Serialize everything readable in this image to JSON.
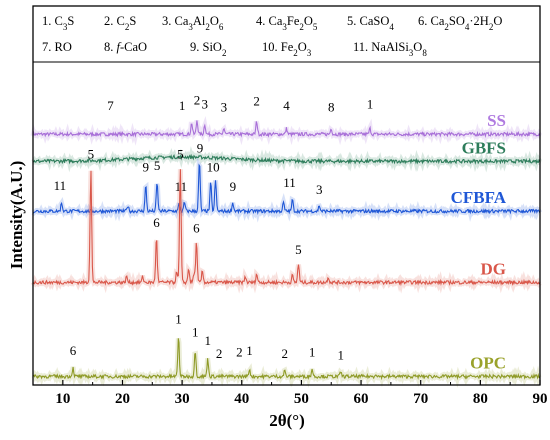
{
  "chart_data": {
    "type": "line",
    "xlabel": "2θ(°)",
    "ylabel": "Intensity(A.U.)",
    "xlim": [
      5,
      90
    ],
    "xticks": [
      10,
      20,
      30,
      40,
      50,
      60,
      70,
      80,
      90
    ],
    "grid": false,
    "legend": {
      "placement": "top",
      "rows": [
        [
          {
            "num": "1.",
            "parts": [
              [
                "C",
                ""
              ],
              [
                "3",
                "sub"
              ],
              [
                "S",
                ""
              ]
            ]
          },
          {
            "num": "2.",
            "parts": [
              [
                "C",
                ""
              ],
              [
                "2",
                "sub"
              ],
              [
                "S",
                ""
              ]
            ]
          },
          {
            "num": "3.",
            "parts": [
              [
                "Ca",
                ""
              ],
              [
                "3",
                "sub"
              ],
              [
                "Al",
                ""
              ],
              [
                "2",
                "sub"
              ],
              [
                "O",
                ""
              ],
              [
                "6",
                "sub"
              ]
            ]
          },
          {
            "num": "4.",
            "parts": [
              [
                "Ca",
                ""
              ],
              [
                "3",
                "sub"
              ],
              [
                "Fe",
                ""
              ],
              [
                "2",
                "sub"
              ],
              [
                "O",
                ""
              ],
              [
                "5",
                "sub"
              ]
            ]
          },
          {
            "num": "5.",
            "parts": [
              [
                "CaSO",
                ""
              ],
              [
                "4",
                "sub"
              ]
            ]
          },
          {
            "num": "6.",
            "parts": [
              [
                "Ca",
                ""
              ],
              [
                "2",
                "sub"
              ],
              [
                "SO",
                ""
              ],
              [
                "4",
                "sub"
              ],
              [
                "·2H",
                ""
              ],
              [
                "2",
                "sub"
              ],
              [
                "O",
                ""
              ]
            ]
          }
        ],
        [
          {
            "num": "7.",
            "parts": [
              [
                "RO",
                ""
              ]
            ]
          },
          {
            "num": "8.",
            "parts": [
              [
                "f",
                "italic"
              ],
              [
                "-CaO",
                ""
              ]
            ]
          },
          {
            "num": "9.",
            "parts": [
              [
                "SiO",
                ""
              ],
              [
                "2",
                "sub"
              ]
            ]
          },
          {
            "num": "10.",
            "parts": [
              [
                "Fe",
                ""
              ],
              [
                "2",
                "sub"
              ],
              [
                "O",
                ""
              ],
              [
                "3",
                "sub"
              ]
            ]
          },
          {
            "num": "11.",
            "parts": [
              [
                "NaAlSi",
                ""
              ],
              [
                "3",
                "sub"
              ],
              [
                "O",
                ""
              ],
              [
                "8",
                "sub"
              ]
            ]
          }
        ]
      ]
    },
    "series": [
      {
        "name": "SS",
        "color": "#a86fd8",
        "labelColor": "#b07be0",
        "baseline": 0.88,
        "peaks": [
          [
            31.6,
            0.04
          ],
          [
            32.5,
            0.05
          ],
          [
            33.8,
            0.035
          ],
          [
            37.0,
            0.02
          ],
          [
            42.5,
            0.045
          ],
          [
            47.5,
            0.02
          ],
          [
            55.0,
            0.02
          ],
          [
            61.5,
            0.02
          ]
        ],
        "labels": [
          {
            "text": "7",
            "x": 18.0,
            "dy": 0.085
          },
          {
            "text": "1",
            "x": 30.0,
            "dy": 0.085
          },
          {
            "text": "2",
            "x": 32.5,
            "dy": 0.105
          },
          {
            "text": "3",
            "x": 33.8,
            "dy": 0.09
          },
          {
            "text": "3",
            "x": 37.0,
            "dy": 0.08
          },
          {
            "text": "2",
            "x": 42.5,
            "dy": 0.1
          },
          {
            "text": "4",
            "x": 47.5,
            "dy": 0.085
          },
          {
            "text": "8",
            "x": 55.0,
            "dy": 0.08
          },
          {
            "text": "1",
            "x": 61.5,
            "dy": 0.09
          }
        ]
      },
      {
        "name": "GBFS",
        "color": "#2e7d5b",
        "labelColor": "#2e7d5b",
        "baseline": 0.785,
        "hump": [
          30.0,
          8.0,
          0.015
        ],
        "peaks": [],
        "labels": []
      },
      {
        "name": "CFBFA",
        "color": "#1f57d6",
        "labelColor": "#1f57d6",
        "baseline": 0.61,
        "peaks": [
          [
            9.8,
            0.03
          ],
          [
            20.9,
            0.02
          ],
          [
            23.9,
            0.09
          ],
          [
            25.8,
            0.1
          ],
          [
            29.5,
            0.025
          ],
          [
            30.4,
            0.03
          ],
          [
            32.9,
            0.175
          ],
          [
            34.8,
            0.1
          ],
          [
            35.6,
            0.11
          ],
          [
            38.5,
            0.03
          ],
          [
            47.0,
            0.03
          ],
          [
            48.5,
            0.04
          ],
          [
            53.0,
            0.02
          ]
        ],
        "labels": [
          {
            "text": "11",
            "x": 9.5,
            "dy": 0.075
          },
          {
            "text": "9",
            "x": 23.9,
            "dy": 0.14
          },
          {
            "text": "5",
            "x": 25.8,
            "dy": 0.145
          },
          {
            "text": "11",
            "x": 29.8,
            "dy": 0.07
          },
          {
            "text": "9",
            "x": 33.0,
            "dy": 0.205
          },
          {
            "text": "10",
            "x": 35.2,
            "dy": 0.14
          },
          {
            "text": "9",
            "x": 38.5,
            "dy": 0.07
          },
          {
            "text": "11",
            "x": 48.0,
            "dy": 0.085
          },
          {
            "text": "3",
            "x": 53.0,
            "dy": 0.06
          }
        ]
      },
      {
        "name": "DG",
        "color": "#d9574a",
        "labelColor": "#d9574a",
        "baseline": 0.36,
        "peaks": [
          [
            14.7,
            0.4
          ],
          [
            20.7,
            0.02
          ],
          [
            23.4,
            0.02
          ],
          [
            25.7,
            0.16
          ],
          [
            29.1,
            0.04
          ],
          [
            29.7,
            0.4
          ],
          [
            31.1,
            0.05
          ],
          [
            32.0,
            0.03
          ],
          [
            32.4,
            0.14
          ],
          [
            33.4,
            0.04
          ],
          [
            40.6,
            0.02
          ],
          [
            42.5,
            0.03
          ],
          [
            48.5,
            0.025
          ],
          [
            49.5,
            0.065
          ],
          [
            54.5,
            0.02
          ]
        ],
        "labels": [
          {
            "text": "5",
            "x": 14.7,
            "dy": 0.435
          },
          {
            "text": "6",
            "x": 25.7,
            "dy": 0.195
          },
          {
            "text": "5",
            "x": 29.7,
            "dy": 0.435
          },
          {
            "text": "6",
            "x": 32.4,
            "dy": 0.175
          },
          {
            "text": "5",
            "x": 49.5,
            "dy": 0.1
          }
        ]
      },
      {
        "name": "OPC",
        "color": "#8e9a26",
        "labelColor": "#9aa22b",
        "baseline": 0.03,
        "peaks": [
          [
            11.7,
            0.03
          ],
          [
            29.4,
            0.14
          ],
          [
            32.2,
            0.09
          ],
          [
            34.3,
            0.06
          ],
          [
            41.3,
            0.025
          ],
          [
            47.2,
            0.02
          ],
          [
            51.8,
            0.025
          ],
          [
            56.6,
            0.015
          ],
          [
            62.5,
            0.01
          ]
        ],
        "labels": [
          {
            "text": "6",
            "x": 11.7,
            "dy": 0.075
          },
          {
            "text": "1",
            "x": 29.4,
            "dy": 0.185
          },
          {
            "text": "1",
            "x": 32.2,
            "dy": 0.14
          },
          {
            "text": "1",
            "x": 34.3,
            "dy": 0.11
          },
          {
            "text": "2",
            "x": 36.2,
            "dy": 0.065
          },
          {
            "text": "2",
            "x": 39.6,
            "dy": 0.07
          },
          {
            "text": "1",
            "x": 41.3,
            "dy": 0.075
          },
          {
            "text": "2",
            "x": 47.2,
            "dy": 0.065
          },
          {
            "text": "1",
            "x": 51.8,
            "dy": 0.07
          },
          {
            "text": "1",
            "x": 56.6,
            "dy": 0.06
          }
        ]
      }
    ]
  }
}
